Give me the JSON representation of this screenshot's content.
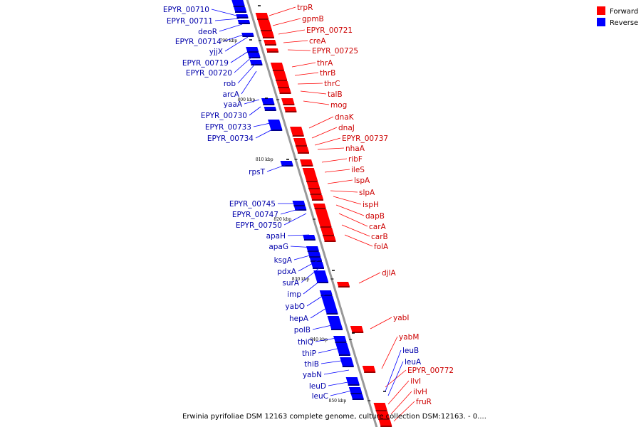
{
  "legend": [
    {
      "label": "Forward",
      "color": "#ff0000"
    },
    {
      "label": "Reverse",
      "color": "#0000ff"
    }
  ],
  "caption": "Erwinia pyrifoliae DSM 12163 complete genome, culture collection DSM:12163. - 0....",
  "colors": {
    "forward": "#ff0000",
    "forward_label": "#cc0000",
    "reverse": "#0000ff",
    "reverse_label": "#0000aa",
    "backbone": "#999999"
  },
  "ticks": [
    "790 kbp",
    "800 kbp",
    "810 kbp",
    "820 kbp",
    "830 kbp",
    "840 kbp",
    "850 kbp"
  ],
  "forward_genes": [
    "trpR",
    "gpmB",
    "EPYR_00721",
    "creA",
    "EPYR_00725",
    "thrA",
    "thrB",
    "thrC",
    "talB",
    "mog",
    "dnaK",
    "dnaJ",
    "EPYR_00737",
    "nhaA",
    "ribF",
    "ileS",
    "lspA",
    "slpA",
    "ispH",
    "dapB",
    "carA",
    "carB",
    "folA",
    "djlA",
    "yabI",
    "yabM",
    "EPYR_00772",
    "ilvI",
    "ilvH",
    "fruR"
  ],
  "reverse_genes": [
    "EPYR_00710",
    "EPYR_00711",
    "deoR",
    "EPYR_00714",
    "yjjX",
    "EPYR_00719",
    "EPYR_00720",
    "rob",
    "arcA",
    "yaaA",
    "EPYR_00730",
    "EPYR_00733",
    "EPYR_00734",
    "rpsT",
    "EPYR_00745",
    "EPYR_00747",
    "EPYR_00750",
    "apaH",
    "apaG",
    "ksgA",
    "pdxA",
    "surA",
    "imp",
    "yabO",
    "hepA",
    "polB",
    "thiQ",
    "thiP",
    "thiB",
    "yabN",
    "leuD",
    "leuC",
    "leuB",
    "leuA"
  ]
}
